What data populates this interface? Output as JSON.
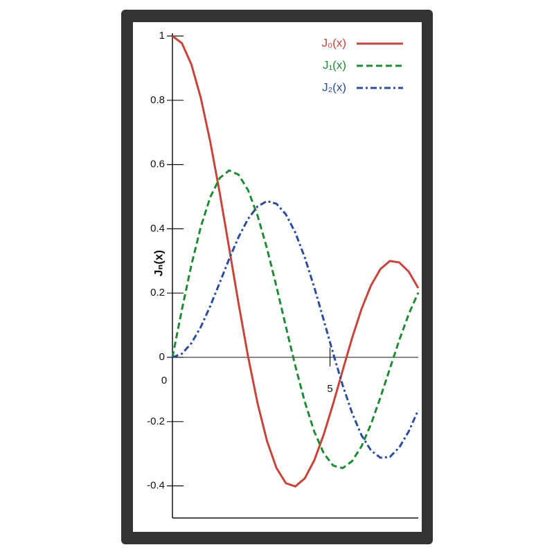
{
  "chart_data": {
    "type": "line",
    "y_label": "Jₙ(x)",
    "x": [
      0,
      0.3,
      0.6,
      0.9,
      1.2,
      1.5,
      1.8,
      2.1,
      2.4,
      2.7,
      3.0,
      3.3,
      3.6,
      3.9,
      4.2,
      4.5,
      4.8,
      5.1,
      5.4,
      5.7,
      6.0,
      6.3,
      6.6,
      6.9,
      7.2,
      7.5,
      7.8
    ],
    "series": [
      {
        "name": "J₀(x)",
        "color": "#c8433a",
        "linestyle": "solid",
        "values": [
          1,
          0.9776,
          0.912,
          0.8075,
          0.6711,
          0.5118,
          0.34,
          0.1666,
          0.0025,
          -0.1424,
          -0.2601,
          -0.3443,
          -0.3918,
          -0.4018,
          -0.3766,
          -0.3205,
          -0.2404,
          -0.1443,
          -0.0412,
          0.0599,
          0.1506,
          0.2238,
          0.2748,
          0.2999,
          0.2951,
          0.2663,
          0.2154
        ]
      },
      {
        "name": "J₁(x)",
        "color": "#1f8a35",
        "linestyle": "dashed",
        "values": [
          0,
          0.1483,
          0.2867,
          0.4059,
          0.4983,
          0.5579,
          0.5815,
          0.5683,
          0.5202,
          0.4416,
          0.3391,
          0.2207,
          0.0955,
          -0.0272,
          -0.1386,
          -0.2311,
          -0.2985,
          -0.337,
          -0.3449,
          -0.3233,
          -0.2767,
          -0.2081,
          -0.1245,
          -0.0349,
          0.0543,
          0.1352,
          0.2014
        ]
      },
      {
        "name": "J₂(x)",
        "color": "#2b4c9c",
        "linestyle": "dashdot",
        "values": [
          0,
          0.0111,
          0.0437,
          0.0945,
          0.1594,
          0.2321,
          0.3061,
          0.3746,
          0.431,
          0.4695,
          0.4862,
          0.4781,
          0.4449,
          0.3879,
          0.3106,
          0.2178,
          0.116,
          0.0121,
          -0.0865,
          -0.1733,
          -0.2429,
          -0.2899,
          -0.3125,
          -0.31,
          -0.28,
          -0.2302,
          -0.1638
        ]
      }
    ],
    "xlim": [
      0,
      7.8
    ],
    "xticks": [
      0,
      5
    ],
    "ylim": [
      -0.5,
      1.0
    ],
    "yticks": [
      -0.4,
      -0.2,
      0,
      0.2,
      0.4,
      0.6,
      0.8,
      1
    ],
    "legend": "upper right"
  }
}
